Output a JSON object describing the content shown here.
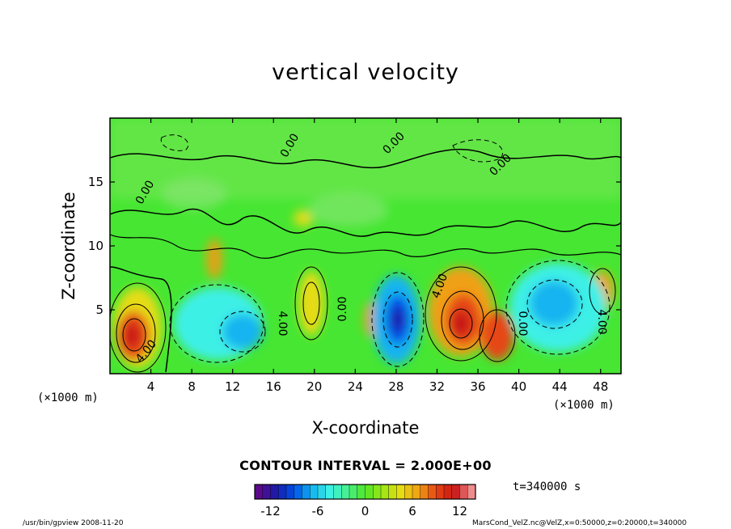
{
  "chart_data": {
    "type": "heatmap",
    "title": "vertical velocity",
    "xlabel": "X-coordinate",
    "ylabel": "Z-coordinate",
    "x_unit": "(×1000 m)",
    "y_unit": "(×1000 m)",
    "x_ticks": [
      4,
      8,
      12,
      16,
      20,
      24,
      28,
      32,
      36,
      40,
      44,
      48
    ],
    "y_ticks": [
      5,
      10,
      15
    ],
    "xlim": [
      0,
      50
    ],
    "ylim": [
      0,
      20
    ],
    "contour_interval": "CONTOUR INTERVAL = 2.000E+00",
    "contour_labels": [
      "0.00",
      "0.00",
      "0.00",
      "0.00",
      "4.00",
      "4.00",
      "4.00",
      "4.00",
      "0.00",
      "0.00"
    ],
    "colorbar": {
      "ticks": [
        -12,
        -6,
        0,
        6,
        12
      ],
      "range": [
        -14,
        14
      ],
      "colors": [
        "#5b0a8c",
        "#1a1aa8",
        "#0050e6",
        "#14b4f0",
        "#3cf0e6",
        "#46f08c",
        "#50e628",
        "#a0e614",
        "#e6dc14",
        "#f0a014",
        "#e64614",
        "#c81414",
        "#f08c8c"
      ]
    },
    "time": "t=340000 s"
  },
  "footer": {
    "left": "/usr/bin/gpview   2008-11-20",
    "right": "MarsCond_VelZ.nc@VelZ,x=0:50000,z=0:20000,t=340000"
  }
}
